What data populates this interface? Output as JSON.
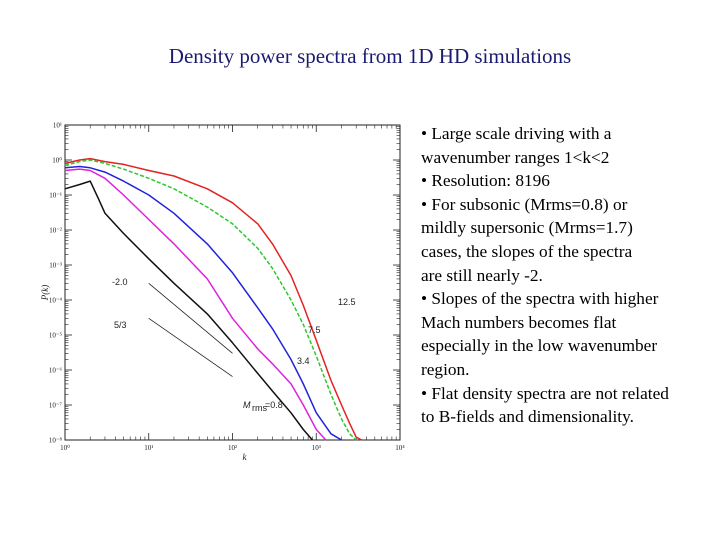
{
  "slide": {
    "title": "Density power spectra from 1D HD simulations",
    "bullets": [
      "• Large scale driving with a",
      "wavenumber ranges 1<k<2",
      "• Resolution: 8196",
      "• For subsonic (Mrms=0.8) or",
      "mildly supersonic (Mrms=1.7)",
      "cases, the slopes of the spectra",
      "are still nearly -2.",
      "• Slopes of the spectra with higher",
      "Mach numbers becomes flat",
      "especially in the low wavenumber",
      "region.",
      "• Flat density spectra are not related",
      "to B-fields and dimensionality."
    ]
  },
  "chart_data": {
    "type": "line",
    "xscale": "log",
    "yscale": "log",
    "xlim": [
      1,
      10000
    ],
    "ylim": [
      1e-08,
      10
    ],
    "xlabel": "k",
    "ylabel": "P(k)",
    "x_ticks": [
      "10⁰",
      "10¹",
      "10²",
      "10³",
      "10⁴"
    ],
    "y_ticks": [
      "10¹",
      "10⁰",
      "10⁻¹",
      "10⁻²",
      "10⁻³",
      "10⁻⁴",
      "10⁻⁵",
      "10⁻⁶",
      "10⁻⁷",
      "10⁻⁸"
    ],
    "series": [
      {
        "name": "12.5",
        "color": "#e32222",
        "dash": "",
        "x": [
          1,
          1.5,
          2,
          3,
          5,
          10,
          20,
          50,
          100,
          200,
          300,
          500,
          700,
          1000,
          1500,
          2000,
          2500,
          3000,
          3500
        ],
        "y": [
          0.8,
          1.0,
          1.1,
          0.9,
          0.75,
          0.5,
          0.35,
          0.15,
          0.06,
          0.015,
          0.004,
          0.0005,
          7e-05,
          7e-06,
          5e-07,
          1e-07,
          3e-08,
          1.2e-08,
          1e-08
        ]
      },
      {
        "name": "7.5",
        "color": "#2cc82c",
        "dash": "4,2",
        "x": [
          1,
          1.5,
          2,
          3,
          5,
          10,
          20,
          50,
          100,
          200,
          300,
          500,
          700,
          1000,
          1500,
          2000,
          2500,
          3000
        ],
        "y": [
          0.7,
          0.9,
          1.0,
          0.8,
          0.55,
          0.3,
          0.15,
          0.045,
          0.015,
          0.003,
          0.0008,
          0.0001,
          2e-05,
          2.5e-06,
          2e-07,
          4e-08,
          1.5e-08,
          1e-08
        ]
      },
      {
        "name": "3.4",
        "color": "#2222dd",
        "dash": "",
        "x": [
          1,
          1.5,
          2,
          3,
          5,
          10,
          20,
          50,
          100,
          200,
          300,
          500,
          700,
          1000,
          1500,
          2000
        ],
        "y": [
          0.6,
          0.65,
          0.6,
          0.45,
          0.25,
          0.1,
          0.03,
          0.004,
          0.0006,
          6e-05,
          1.5e-05,
          2e-06,
          4e-07,
          6e-08,
          1.5e-08,
          1e-08
        ]
      },
      {
        "name": "1.7",
        "color": "#dd22dd",
        "dash": "",
        "x": [
          1,
          1.5,
          2,
          3,
          5,
          10,
          20,
          50,
          100,
          200,
          300,
          500,
          700,
          1000,
          1300
        ],
        "y": [
          0.5,
          0.55,
          0.5,
          0.3,
          0.1,
          0.02,
          0.004,
          0.0004,
          3e-05,
          4e-06,
          1.5e-06,
          4e-07,
          1e-07,
          2e-08,
          1e-08
        ]
      },
      {
        "name": "0.8",
        "color": "#111111",
        "dash": "",
        "x": [
          1,
          1.5,
          2,
          2.5,
          3,
          5,
          10,
          20,
          50,
          100,
          200,
          300,
          500,
          700,
          900
        ],
        "y": [
          0.15,
          0.2,
          0.25,
          0.08,
          0.03,
          0.008,
          0.0015,
          0.0003,
          4e-05,
          6e-06,
          8e-07,
          2.5e-07,
          6e-08,
          2e-08,
          1e-08
        ]
      }
    ],
    "reference_lines": [
      {
        "label": "-2.0",
        "x": [
          10,
          100
        ],
        "y": [
          0.0003,
          3e-06
        ]
      },
      {
        "label": "5/3",
        "x": [
          10,
          100
        ],
        "y": [
          3e-05,
          6.5e-07
        ]
      }
    ],
    "annotations": [
      "-2.0",
      "5/3",
      "12.5",
      "7.5",
      "3.4",
      "M",
      "rms",
      "=0.8"
    ]
  }
}
